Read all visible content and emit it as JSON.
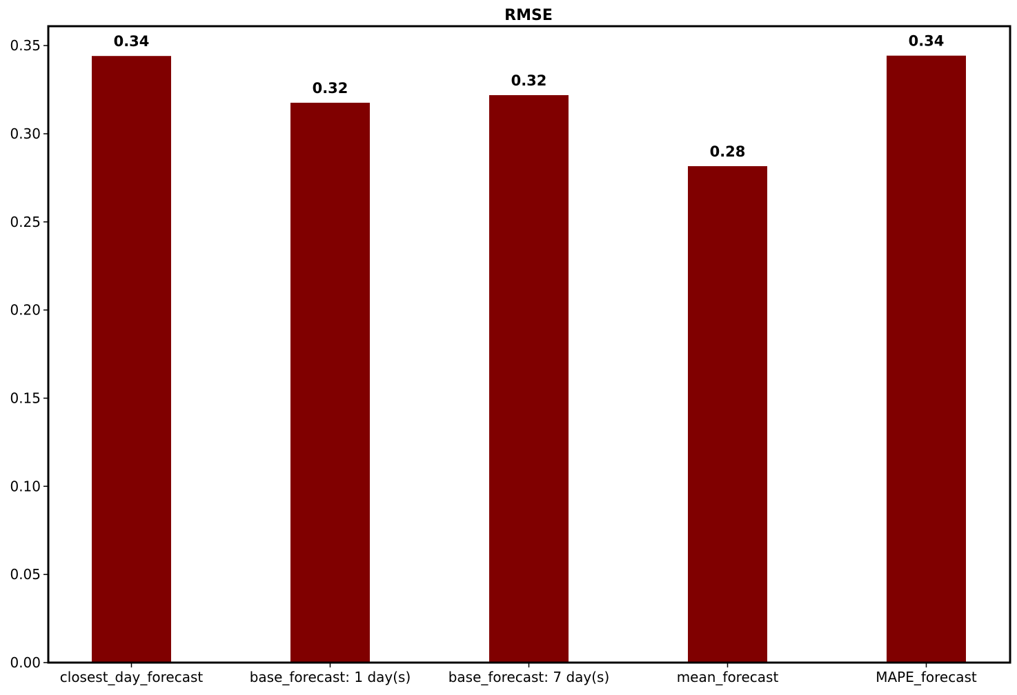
{
  "chart_data": {
    "type": "bar",
    "title": "RMSE",
    "xlabel": "",
    "ylabel": "",
    "categories": [
      "closest_day_forecast",
      "base_forecast: 1 day(s)",
      "base_forecast: 7 day(s)",
      "mean_forecast",
      "MAPE_forecast"
    ],
    "values": [
      0.3441,
      0.3176,
      0.3219,
      0.2816,
      0.3443
    ],
    "value_labels": [
      "0.34",
      "0.32",
      "0.32",
      "0.28",
      "0.34"
    ],
    "yticks": [
      0.0,
      0.05,
      0.1,
      0.15,
      0.2,
      0.25,
      0.3,
      0.35
    ],
    "ytick_labels": [
      "0.00",
      "0.05",
      "0.10",
      "0.15",
      "0.20",
      "0.25",
      "0.30",
      "0.35"
    ],
    "ylim": [
      0,
      0.361
    ],
    "grid": false,
    "legend": "none",
    "bar_color": "#800000"
  }
}
